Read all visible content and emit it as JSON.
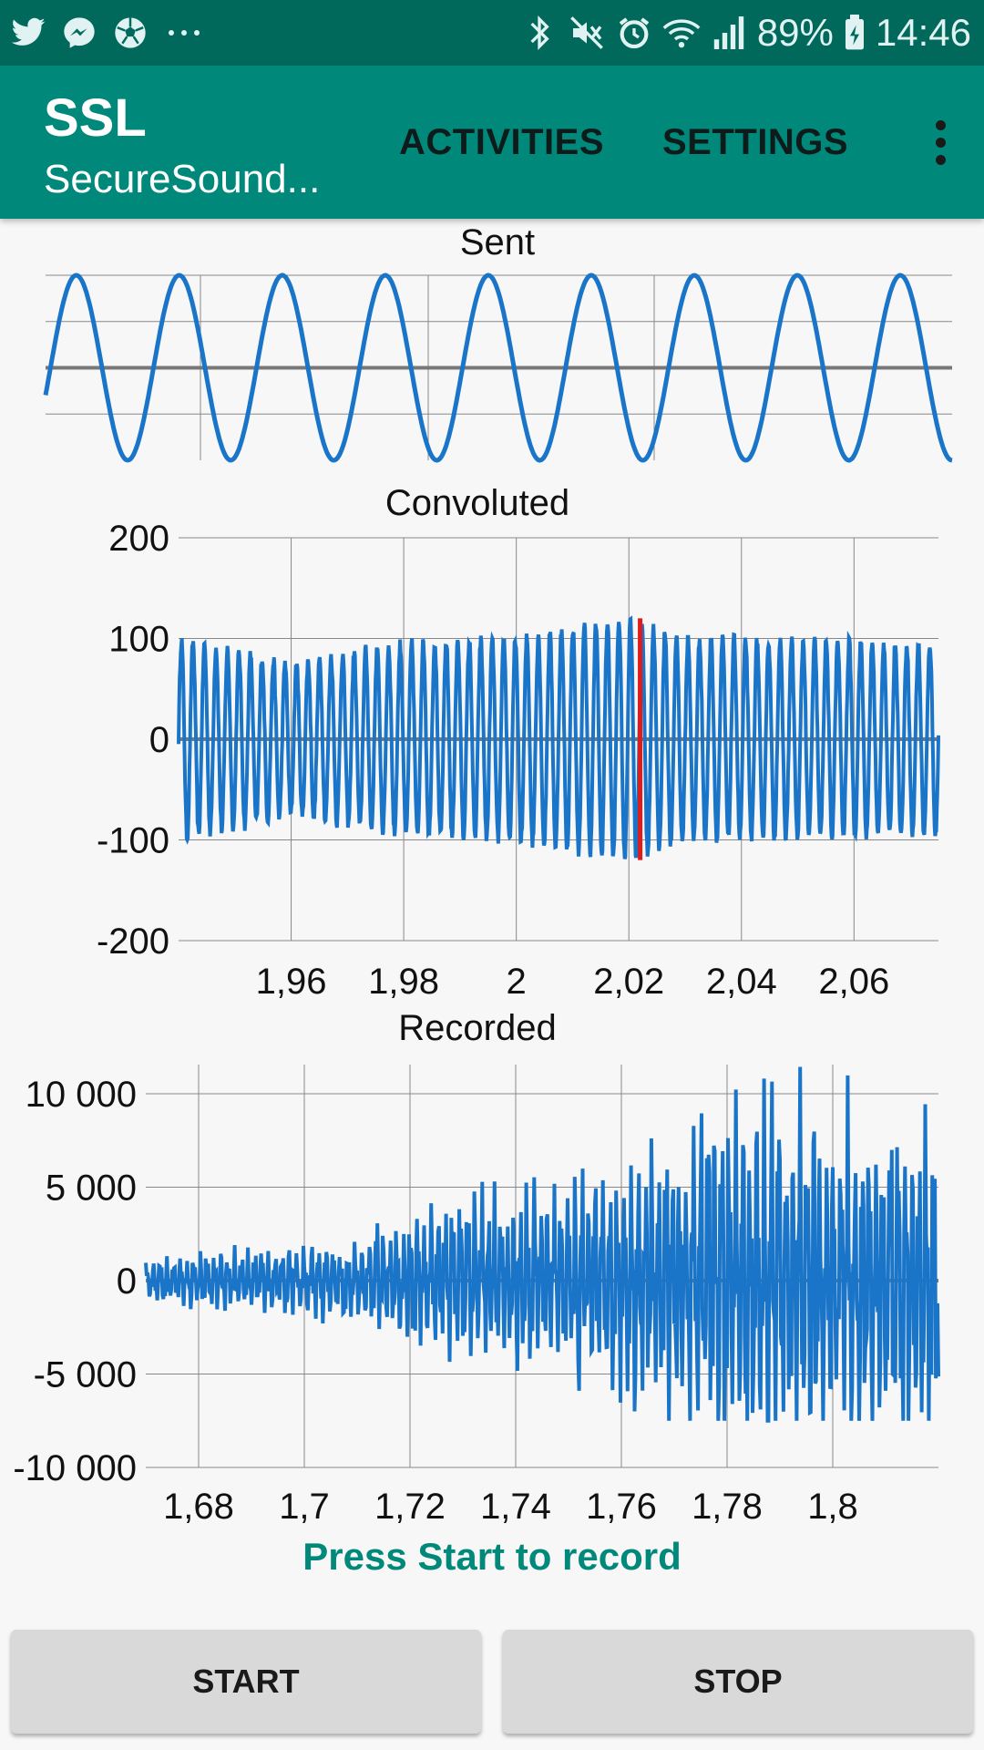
{
  "status_bar": {
    "left_icons": [
      "twitter-icon",
      "messenger-icon",
      "soccer-ball-icon",
      "more-notifications-icon"
    ],
    "right_icons": [
      "bluetooth-icon",
      "mute-icon",
      "alarm-icon",
      "wifi-icon",
      "signal-icon",
      "battery-icon"
    ],
    "battery": "89%",
    "time": "14:46"
  },
  "app_bar": {
    "title": "SSL",
    "subtitle": "SecureSound...",
    "actions": [
      "ACTIVITIES",
      "SETTINGS"
    ],
    "overflow_icon": "more-vert-icon"
  },
  "colors": {
    "status_bar": "#00695c",
    "app_bar": "#00897b",
    "series": "#1a75c9",
    "marker": "#e01b1b",
    "status_text": "#00897b"
  },
  "chart_data": [
    {
      "type": "line",
      "title": "Sent",
      "ylim": [
        -1,
        1
      ],
      "series": [
        {
          "waveform": "sine",
          "cycles": 8.8,
          "amplitude": 1
        }
      ],
      "grid": true,
      "tick_labels": false
    },
    {
      "type": "line",
      "title": "Convoluted",
      "xlim": [
        1.94,
        2.075
      ],
      "ylim": [
        -200,
        200
      ],
      "yticks": [
        "200",
        "100",
        "0",
        "-100",
        "-200"
      ],
      "xticks": [
        "1,96",
        "1,98",
        "2",
        "2,02",
        "2,04",
        "2,06"
      ],
      "series": [
        {
          "envelope_x": [
            1.94,
            1.96,
            1.98,
            2.0,
            2.01,
            2.02,
            2.03,
            2.075
          ],
          "envelope_y": [
            100,
            75,
            95,
            100,
            110,
            120,
            100,
            95
          ],
          "oscillations": 66
        }
      ],
      "marker_x": 2.022,
      "marker_ylim": [
        -120,
        120
      ],
      "grid": true
    },
    {
      "type": "line",
      "title": "Recorded",
      "xlim": [
        1.67,
        1.82
      ],
      "ylim": [
        -10000,
        10000
      ],
      "yticks": [
        "10 000",
        "5 000",
        "0",
        "-5 000",
        "-10 000"
      ],
      "xticks": [
        "1,68",
        "1,7",
        "1,72",
        "1,74",
        "1,76",
        "1,78",
        "1,8"
      ],
      "series": [
        {
          "envelope_x": [
            1.67,
            1.71,
            1.72,
            1.75,
            1.77,
            1.78,
            1.82
          ],
          "envelope_y": [
            1500,
            2500,
            4500,
            6000,
            9000,
            11500,
            10000
          ]
        }
      ],
      "grid": true
    }
  ],
  "status_message": "Press Start to record",
  "buttons": {
    "start": "START",
    "stop": "STOP"
  }
}
